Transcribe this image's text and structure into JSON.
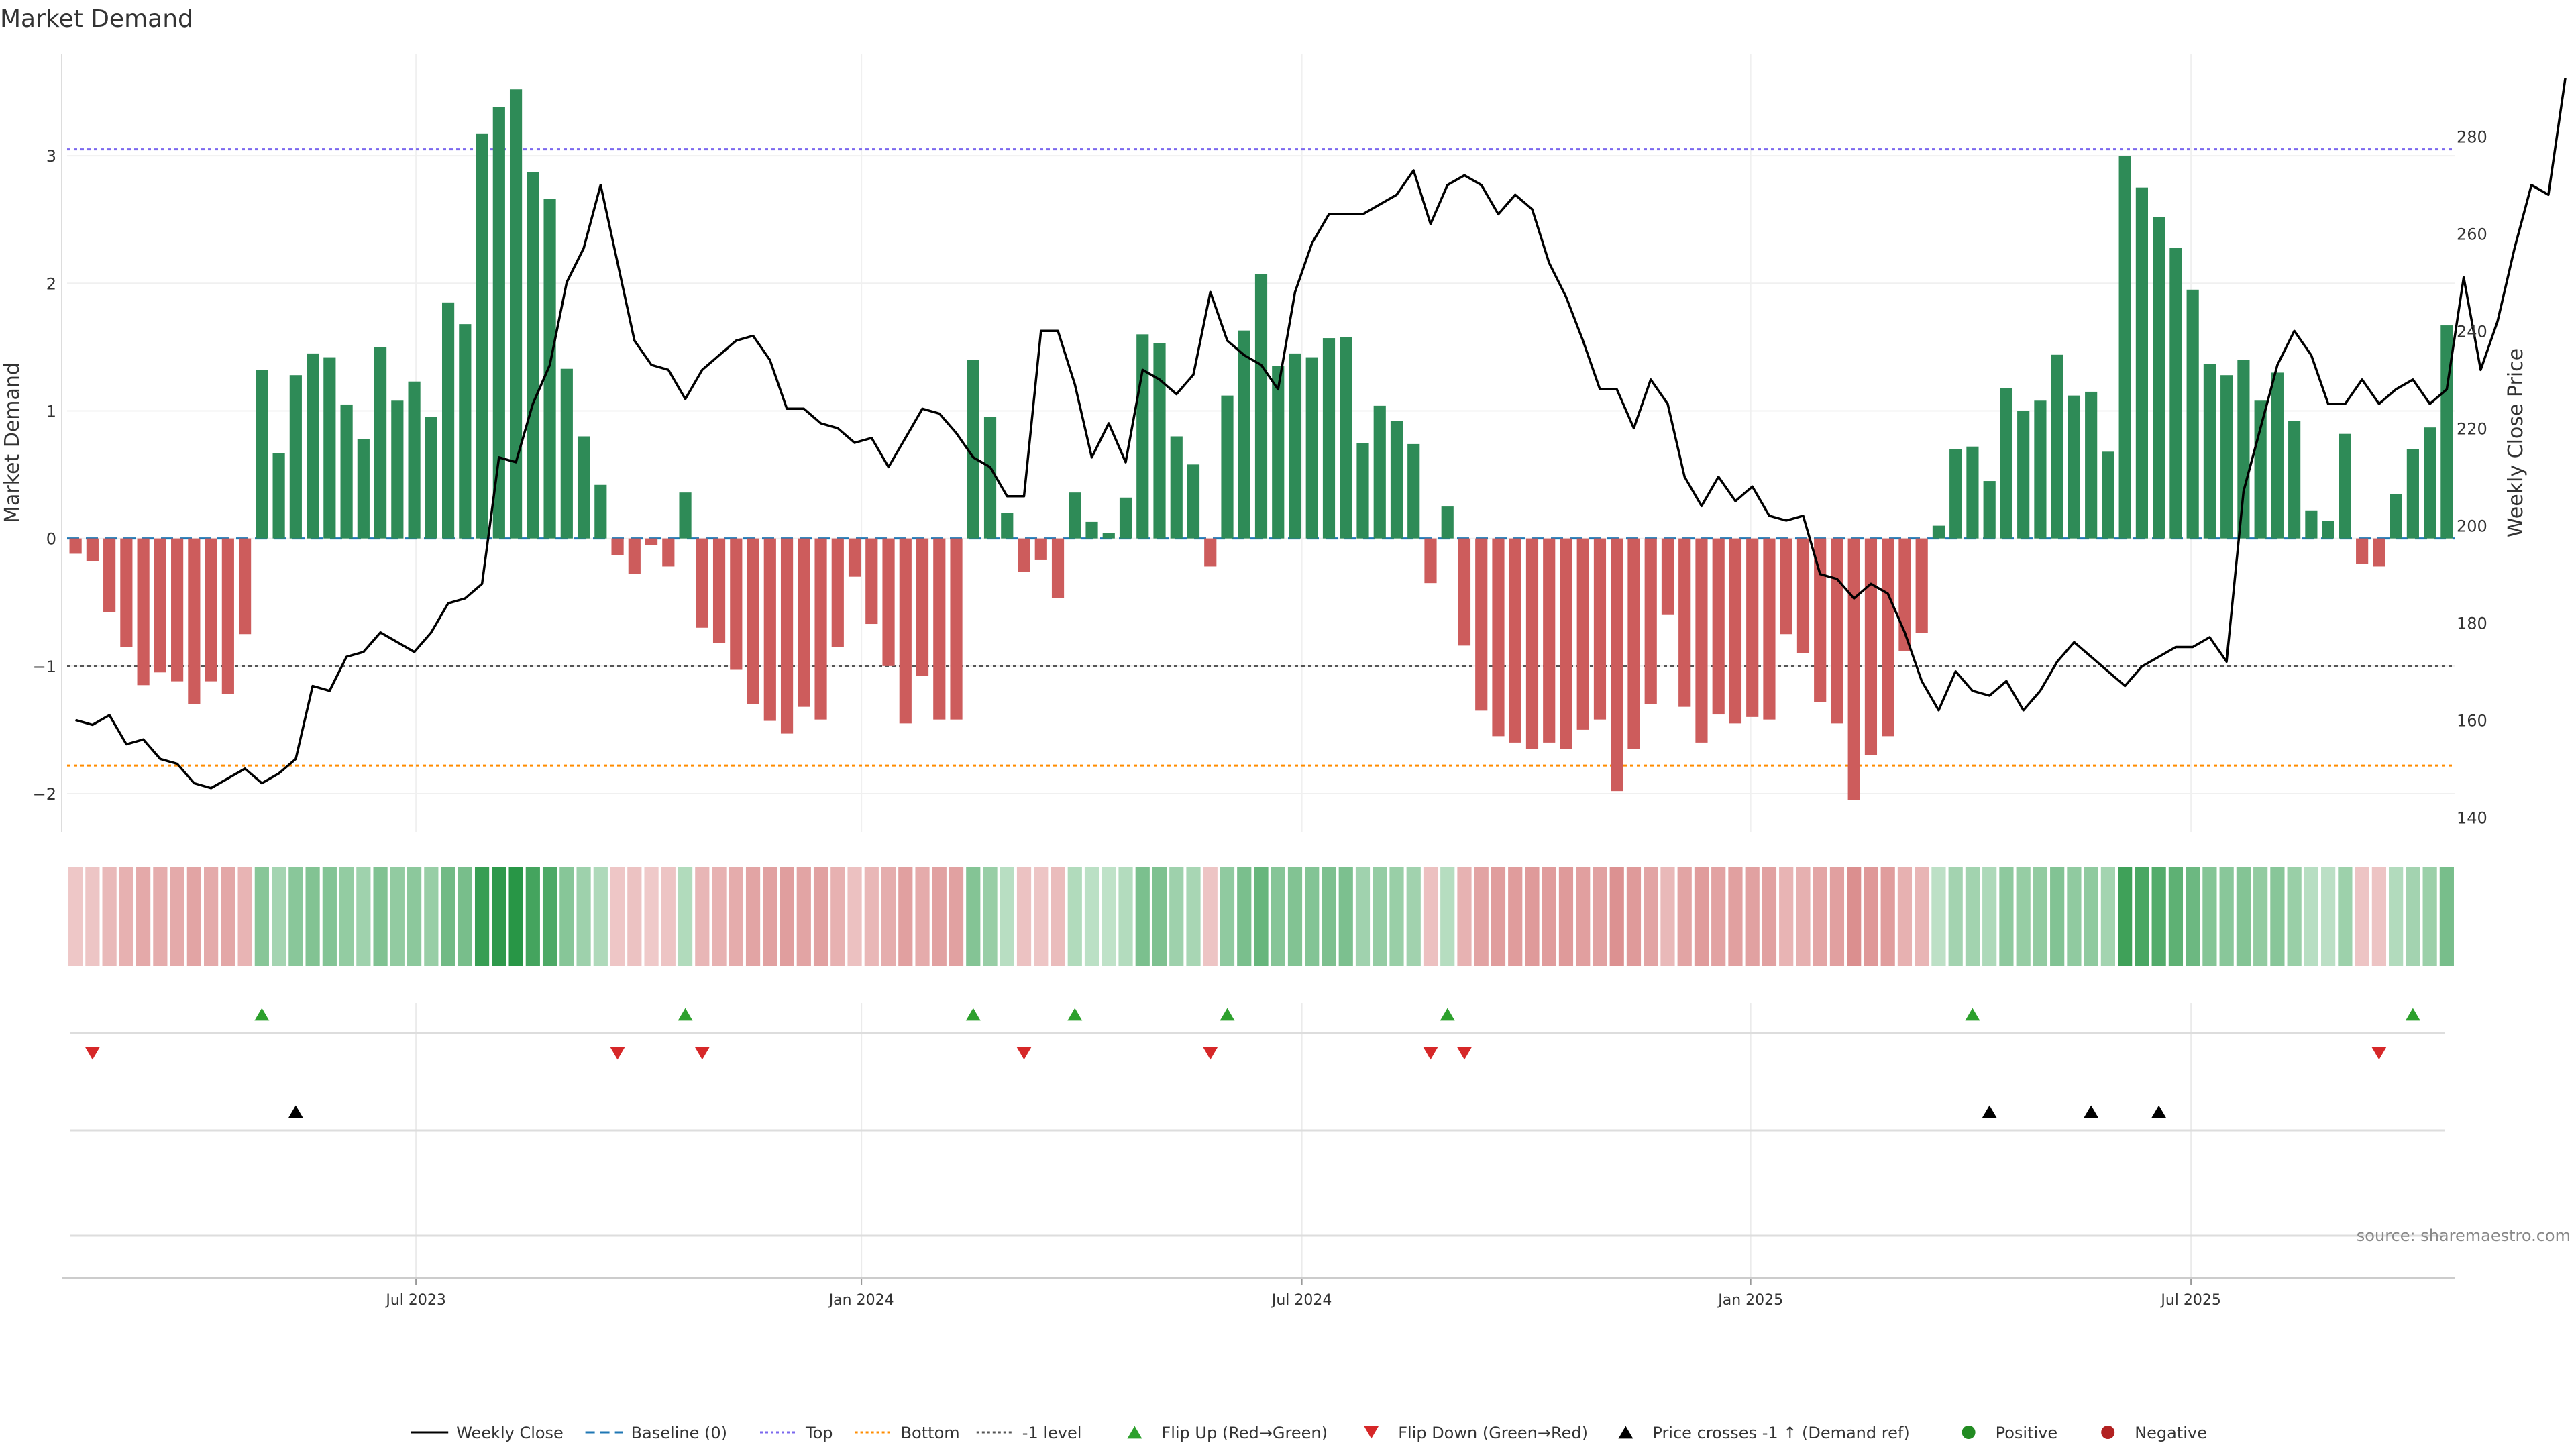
{
  "chart_data": {
    "type": "bar",
    "title": "Market Demand",
    "ylabel": "Market Demand",
    "y2label": "Weekly Close Price",
    "source": "source: sharemaestro.com",
    "ylim": [
      -2.3,
      3.8
    ],
    "y2lim": [
      137,
      297
    ],
    "yticks": [
      -2,
      -1,
      0,
      1,
      2,
      3
    ],
    "yticklabels": [
      "−2",
      "−1",
      "0",
      "1",
      "2",
      "3"
    ],
    "y2ticks": [
      140,
      160,
      180,
      200,
      220,
      240,
      260,
      280
    ],
    "reference_levels": {
      "baseline": 0,
      "top": 3.05,
      "bottom": -1.78,
      "minus_one": -1
    },
    "date_ticks": [
      "Jul 2023",
      "Jan 2024",
      "Jul 2024",
      "Jan 2025",
      "Jul 2025"
    ],
    "date_tick_index": [
      20.6,
      46.9,
      72.9,
      99.4,
      125.4
    ],
    "demand": [
      -0.12,
      -0.18,
      -0.58,
      -0.85,
      -1.15,
      -1.05,
      -1.12,
      -1.3,
      -1.12,
      -1.22,
      -0.75,
      1.32,
      0.67,
      1.28,
      1.45,
      1.42,
      1.05,
      0.78,
      1.5,
      1.08,
      1.23,
      0.95,
      1.85,
      1.68,
      3.17,
      3.38,
      3.52,
      2.87,
      2.66,
      1.33,
      0.8,
      0.42,
      -0.13,
      -0.28,
      -0.05,
      -0.22,
      0.36,
      -0.7,
      -0.82,
      -1.03,
      -1.3,
      -1.43,
      -1.53,
      -1.32,
      -1.42,
      -0.85,
      -0.3,
      -0.67,
      -1.0,
      -1.45,
      -1.08,
      -1.42,
      -1.42,
      1.4,
      0.95,
      0.2,
      -0.26,
      -0.17,
      -0.47,
      0.36,
      0.13,
      0.04,
      0.32,
      1.6,
      1.53,
      0.8,
      0.58,
      -0.22,
      1.12,
      1.63,
      2.07,
      1.35,
      1.45,
      1.42,
      1.57,
      1.58,
      0.75,
      1.04,
      0.92,
      0.74,
      -0.35,
      0.25,
      -0.84,
      -1.35,
      -1.55,
      -1.6,
      -1.65,
      -1.6,
      -1.65,
      -1.5,
      -1.42,
      -1.98,
      -1.65,
      -1.3,
      -0.6,
      -1.32,
      -1.6,
      -1.38,
      -1.45,
      -1.4,
      -1.42,
      -0.75,
      -0.9,
      -1.28,
      -1.45,
      -2.05,
      -1.7,
      -1.55,
      -0.88,
      -0.74,
      0.1,
      0.7,
      0.72,
      0.45,
      1.18,
      1.0,
      1.08,
      1.44,
      1.12,
      1.15,
      0.68,
      3.0,
      2.75,
      2.52,
      2.28,
      1.95,
      1.37,
      1.28,
      1.4,
      1.08,
      1.3,
      0.92,
      0.22,
      0.14,
      0.82,
      -0.2,
      -0.22,
      0.35,
      0.7,
      0.87,
      1.67
    ],
    "price": [
      160,
      159,
      161,
      155,
      156,
      152,
      151,
      147,
      146,
      148,
      150,
      147,
      149,
      152,
      167,
      166,
      173,
      174,
      178,
      176,
      174,
      178,
      184,
      185,
      188,
      214,
      213,
      225,
      233,
      250,
      257,
      270,
      254,
      238,
      233,
      232,
      226,
      232,
      235,
      238,
      239,
      234,
      224,
      224,
      221,
      220,
      217,
      218,
      212,
      218,
      224,
      223,
      219,
      214,
      212,
      206,
      206,
      240,
      240,
      229,
      214,
      221,
      213,
      232,
      230,
      227,
      231,
      248,
      238,
      235,
      233,
      228,
      248,
      258,
      264,
      264,
      264,
      266,
      268,
      273,
      262,
      270,
      272,
      270,
      264,
      268,
      265,
      254,
      247,
      238,
      228,
      228,
      220,
      230,
      225,
      210,
      204,
      210,
      205,
      208,
      202,
      201,
      202,
      190,
      189,
      185,
      188,
      186,
      178,
      168,
      162,
      170,
      166,
      165,
      168,
      162,
      166,
      172,
      176,
      173,
      170,
      167,
      171,
      173,
      175,
      175,
      177,
      172,
      207,
      220,
      233,
      240,
      235,
      225,
      225,
      230,
      225,
      228,
      230,
      225,
      228,
      251,
      232,
      242,
      257,
      270,
      268,
      292
    ],
    "flip_up": [
      11,
      36,
      53,
      59,
      68,
      81,
      112,
      138
    ],
    "flip_down": [
      1,
      32,
      37,
      56,
      67,
      80,
      82,
      136
    ],
    "price_cross": [
      13,
      113,
      119,
      123
    ],
    "colors": {
      "positive": "#2e8b57",
      "negative": "#cd5c5c",
      "price_line": "#000000",
      "baseline": "#1f77b4",
      "top": "#7b68ee",
      "bottom": "#ff8c00",
      "minus_one": "#555555",
      "flip_up": "#2ca02c",
      "flip_down": "#d62728"
    },
    "legend": [
      {
        "label": "Weekly Close",
        "icon": "line-solid",
        "color": "#000000"
      },
      {
        "label": "Baseline (0)",
        "icon": "line-dashed",
        "color": "#1f77b4"
      },
      {
        "label": "Top",
        "icon": "line-dotted",
        "color": "#7b68ee"
      },
      {
        "label": "Bottom",
        "icon": "line-dotted",
        "color": "#ff8c00"
      },
      {
        "label": "-1 level",
        "icon": "line-dotted",
        "color": "#555555"
      },
      {
        "label": "Flip Up (Red→Green)",
        "icon": "triangle-up",
        "color": "#2ca02c"
      },
      {
        "label": "Flip Down (Green→Red)",
        "icon": "triangle-down",
        "color": "#d62728"
      },
      {
        "label": "Price crosses -1 ↑ (Demand ref)",
        "icon": "triangle-up",
        "color": "#000000"
      },
      {
        "label": "Positive",
        "icon": "dot",
        "color": "#228b22"
      },
      {
        "label": "Negative",
        "icon": "dot",
        "color": "#b22222"
      }
    ],
    "legend_placement": "bottom"
  }
}
